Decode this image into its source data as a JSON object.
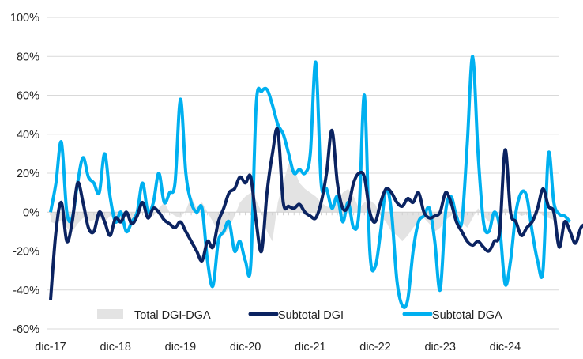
{
  "chart_data": {
    "type": "line",
    "title": "",
    "xlabel": "",
    "ylabel": "",
    "ylim": [
      -0.6,
      1.0
    ],
    "y_ticks": [
      1.0,
      0.8,
      0.6,
      0.4,
      0.2,
      0.0,
      -0.2,
      -0.4,
      -0.6
    ],
    "y_tick_labels": [
      "100%",
      "80%",
      "60%",
      "40%",
      "20%",
      "0%",
      "-20%",
      "-40%",
      "-60%"
    ],
    "x_tick_labels": [
      "dic-17",
      "dic-18",
      "dic-19",
      "dic-20",
      "dic-21",
      "dic-22",
      "dic-23",
      "dic-24"
    ],
    "x_start": "dic-17",
    "frequency": "monthly",
    "grid": true,
    "legend_position": "bottom",
    "colors": {
      "area": "#e3e3e3",
      "dgi": "#0b2361",
      "dga": "#00b0f0",
      "grid": "#d9d9d9"
    },
    "series": [
      {
        "name": "Total DGI-DGA",
        "kind": "area",
        "values": [
          -0.05,
          -0.06,
          -0.04,
          -0.08,
          -0.1,
          -0.06,
          -0.03,
          -0.05,
          -0.04,
          -0.03,
          -0.05,
          -0.02,
          -0.03,
          -0.04,
          -0.02,
          -0.05,
          -0.02,
          0.0,
          0.02,
          -0.02,
          0.02,
          0.05,
          0.0,
          -0.02,
          -0.03,
          0.01,
          0.08,
          0.02,
          0.05,
          0.0,
          -0.05,
          -0.1,
          -0.12,
          -0.08,
          -0.02,
          0.05,
          0.08,
          0.1,
          0.06,
          0.0,
          -0.1,
          -0.15,
          0.05,
          0.15,
          0.25,
          0.22,
          0.15,
          0.12,
          0.1,
          0.08,
          0.05,
          0.03,
          0.02,
          0.05,
          0.1,
          0.12,
          0.08,
          0.02,
          0.05,
          0.06,
          0.04,
          -0.02,
          -0.05,
          -0.1,
          -0.12,
          -0.15,
          -0.12,
          -0.08,
          -0.05,
          -0.03,
          -0.06,
          -0.1,
          -0.08,
          -0.04,
          -0.02,
          0.0,
          -0.05,
          -0.08,
          -0.03,
          0.02,
          -0.02,
          -0.05,
          -0.04,
          0.0,
          0.02,
          0.01,
          0.0,
          -0.02,
          -0.01,
          0.0,
          0.01,
          -0.02,
          -0.03,
          -0.04
        ]
      },
      {
        "name": "Subtotal DGI",
        "kind": "line",
        "values": [
          -0.45,
          -0.1,
          0.05,
          -0.15,
          -0.05,
          0.15,
          0.05,
          -0.08,
          -0.1,
          0.0,
          -0.05,
          -0.12,
          -0.03,
          -0.05,
          0.0,
          -0.06,
          -0.02,
          0.05,
          -0.03,
          0.02,
          0.0,
          -0.04,
          -0.06,
          -0.08,
          -0.05,
          -0.1,
          -0.15,
          -0.2,
          -0.25,
          -0.15,
          -0.18,
          -0.05,
          0.02,
          0.1,
          0.12,
          0.18,
          0.15,
          0.18,
          -0.05,
          -0.2,
          0.1,
          0.3,
          0.42,
          0.05,
          0.03,
          0.02,
          0.04,
          0.0,
          -0.02,
          -0.03,
          0.05,
          0.2,
          0.42,
          0.15,
          0.02,
          0.03,
          0.15,
          0.2,
          0.18,
          0.0,
          -0.05,
          0.05,
          0.12,
          0.1,
          0.05,
          0.03,
          0.07,
          0.05,
          0.1,
          0.0,
          -0.03,
          -0.02,
          0.0,
          0.1,
          0.05,
          -0.05,
          -0.1,
          -0.15,
          -0.17,
          -0.15,
          -0.18,
          -0.2,
          -0.15,
          -0.1,
          0.32,
          0.0,
          -0.05,
          -0.12,
          -0.08,
          -0.05,
          0.02,
          0.12,
          0.03,
          0.0,
          -0.18,
          -0.05,
          -0.1,
          -0.16,
          -0.08,
          -0.06
        ]
      },
      {
        "name": "Subtotal DGA",
        "kind": "line",
        "values": [
          0.0,
          0.15,
          0.36,
          0.0,
          -0.03,
          0.15,
          0.28,
          0.18,
          0.15,
          0.1,
          0.3,
          0.08,
          -0.05,
          0.0,
          -0.1,
          -0.05,
          0.0,
          0.15,
          0.0,
          0.05,
          0.2,
          0.05,
          0.1,
          0.15,
          0.58,
          0.2,
          0.05,
          0.0,
          0.02,
          -0.25,
          -0.38,
          -0.15,
          -0.1,
          -0.05,
          -0.2,
          -0.15,
          -0.25,
          -0.27,
          0.55,
          0.62,
          0.63,
          0.55,
          0.45,
          0.4,
          0.3,
          0.2,
          0.22,
          0.2,
          0.3,
          0.77,
          0.15,
          0.12,
          0.02,
          0.08,
          -0.05,
          0.05,
          -0.08,
          0.0,
          0.6,
          -0.2,
          -0.28,
          -0.1,
          0.12,
          0.0,
          -0.35,
          -0.48,
          -0.45,
          -0.2,
          -0.05,
          -0.02,
          0.02,
          -0.15,
          -0.4,
          0.0,
          0.08,
          -0.02,
          -0.05,
          0.35,
          0.8,
          0.3,
          -0.05,
          -0.1,
          0.0,
          -0.08,
          -0.37,
          -0.25,
          0.0,
          0.1,
          0.08,
          -0.1,
          -0.25,
          -0.3,
          0.3,
          0.05,
          -0.01,
          -0.02,
          -0.05
        ]
      }
    ]
  }
}
